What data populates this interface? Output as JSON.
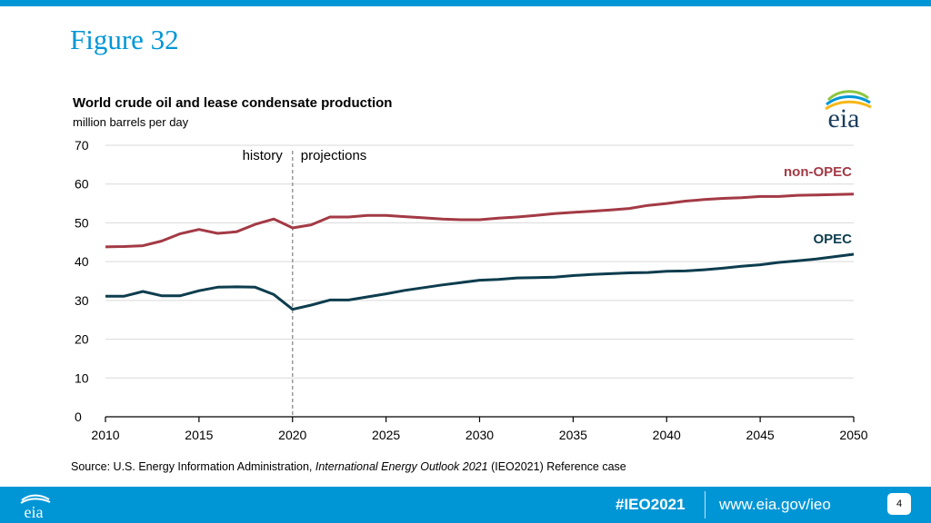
{
  "page": {
    "figure_title": "Figure 32",
    "source_prefix": "Source:  U.S. Energy Information Administration, ",
    "source_italic": "International Energy Outlook 2021",
    "source_suffix": " (IEO2021) Reference case",
    "hashtag": "#IEO2021",
    "url": "www.eia.gov/ieo",
    "page_number": "4",
    "logo_text": "eia",
    "colors": {
      "accent": "#0096d6",
      "non_opec": "#a33a45",
      "opec": "#0d3d4e"
    }
  },
  "chart_data": {
    "type": "line",
    "title": "World crude oil and lease condensate production",
    "ylabel": "million barrels per day",
    "xlabel": "",
    "xlim": [
      2010,
      2050
    ],
    "ylim": [
      0,
      70
    ],
    "x_ticks": [
      2010,
      2015,
      2020,
      2025,
      2030,
      2035,
      2040,
      2045,
      2050
    ],
    "y_ticks": [
      0,
      10,
      20,
      30,
      40,
      50,
      60,
      70
    ],
    "grid": true,
    "divider": {
      "x": 2020,
      "left_label": "history",
      "right_label": "projections"
    },
    "x": [
      2010,
      2011,
      2012,
      2013,
      2014,
      2015,
      2016,
      2017,
      2018,
      2019,
      2020,
      2021,
      2022,
      2023,
      2024,
      2025,
      2026,
      2027,
      2028,
      2029,
      2030,
      2031,
      2032,
      2033,
      2034,
      2035,
      2036,
      2037,
      2038,
      2039,
      2040,
      2041,
      2042,
      2043,
      2044,
      2045,
      2046,
      2047,
      2048,
      2049,
      2050
    ],
    "series": [
      {
        "name": "non-OPEC",
        "color": "#a33a45",
        "values": [
          43.8,
          43.9,
          44.1,
          45.3,
          47.2,
          48.3,
          47.3,
          47.7,
          49.6,
          51.0,
          48.7,
          49.5,
          51.5,
          51.5,
          51.9,
          51.9,
          51.6,
          51.3,
          51.0,
          50.8,
          50.8,
          51.2,
          51.5,
          51.9,
          52.4,
          52.7,
          53.0,
          53.3,
          53.7,
          54.5,
          55.0,
          55.6,
          56.0,
          56.3,
          56.5,
          56.8,
          56.8,
          57.1,
          57.2,
          57.3,
          57.4
        ]
      },
      {
        "name": "OPEC",
        "color": "#0d3d4e",
        "values": [
          31.1,
          31.1,
          32.3,
          31.2,
          31.2,
          32.5,
          33.4,
          33.5,
          33.4,
          31.5,
          27.7,
          28.8,
          30.1,
          30.1,
          30.9,
          31.7,
          32.6,
          33.3,
          34.0,
          34.6,
          35.2,
          35.4,
          35.8,
          35.9,
          36.0,
          36.4,
          36.7,
          36.9,
          37.1,
          37.2,
          37.5,
          37.6,
          37.9,
          38.3,
          38.8,
          39.2,
          39.8,
          40.2,
          40.7,
          41.3,
          41.9
        ]
      }
    ]
  }
}
